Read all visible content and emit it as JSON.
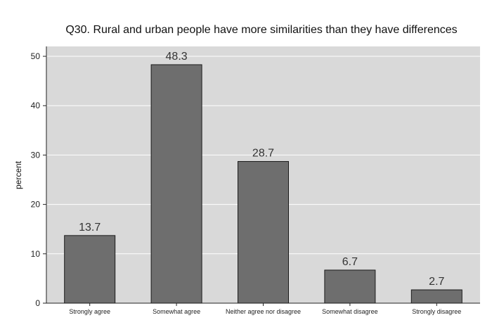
{
  "chart_data": {
    "type": "bar",
    "title": "Q30. Rural and urban people have more similarities than they have differences",
    "xlabel": "",
    "ylabel": "percent",
    "categories": [
      "Strongly agree",
      "Somewhat agree",
      "Neither agree nor disagree",
      "Somewhat disagree",
      "Strongly disagree"
    ],
    "values": [
      13.7,
      48.3,
      28.7,
      6.7,
      2.7
    ],
    "value_labels": [
      "13.7",
      "48.3",
      "28.7",
      "6.7",
      "2.7"
    ],
    "ylim": [
      0,
      52
    ],
    "yticks": [
      0,
      10,
      20,
      30,
      40,
      50
    ],
    "grid": true,
    "colors": {
      "plot_background": "#d9d9d9",
      "bar_fill": "#6e6e6e",
      "bar_stroke": "#1a1a1a",
      "gridline": "#ffffff",
      "text": "#222222"
    }
  }
}
